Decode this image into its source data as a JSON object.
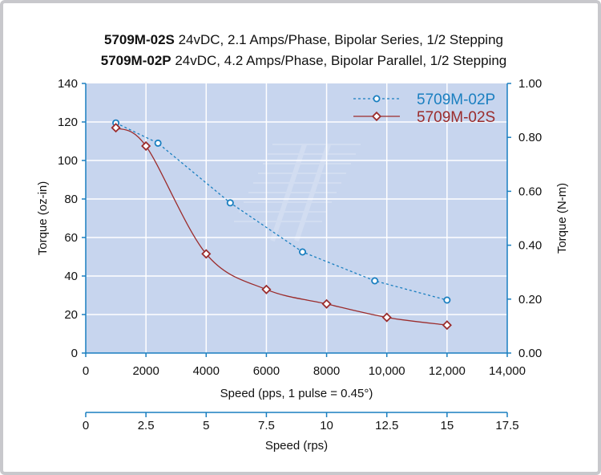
{
  "title": {
    "line1_model": "5709M-02S",
    "line1_desc": " 24vDC, 2.1 Amps/Phase, Bipolar Series, 1/2 Stepping",
    "line2_model": "5709M-02P",
    "line2_desc": " 24vDC, 4.2 Amps/Phase, Bipolar Parallel, 1/2 Stepping"
  },
  "chart_data": {
    "type": "line",
    "xlabel": "Speed (pps, 1 pulse = 0.45°)",
    "ylabel": "Torque (oz-in)",
    "y2label": "Torque (N-m)",
    "x2label": "Speed (rps)",
    "xlim": [
      0,
      14000
    ],
    "ylim": [
      0,
      140
    ],
    "y2lim": [
      0,
      1.0
    ],
    "x2lim": [
      0,
      17.5
    ],
    "x_ticks": [
      0,
      2000,
      4000,
      6000,
      8000,
      10000,
      12000,
      14000
    ],
    "x_tick_labels": [
      "0",
      "2000",
      "4000",
      "6000",
      "8000",
      "10,000",
      "12,000",
      "14,000"
    ],
    "y_ticks": [
      0,
      20,
      40,
      60,
      80,
      100,
      120,
      140
    ],
    "y_tick_labels": [
      "0",
      "20",
      "40",
      "60",
      "80",
      "100",
      "120",
      "140"
    ],
    "y2_ticks": [
      0,
      0.2,
      0.4,
      0.6,
      0.8,
      1.0
    ],
    "y2_tick_labels": [
      "0.00",
      "0.20",
      "0.40",
      "0.60",
      "0.80",
      "1.00"
    ],
    "x2_ticks": [
      0,
      2.5,
      5,
      7.5,
      10,
      12.5,
      15,
      17.5
    ],
    "x2_tick_labels": [
      "0",
      "2.5",
      "5",
      "7.5",
      "10",
      "12.5",
      "15",
      "17.5"
    ],
    "grid": true,
    "legend_position": "top-right",
    "series": [
      {
        "name": "5709M-02P",
        "color": "#1a7fc0",
        "style": "dashed",
        "marker": "circle",
        "x": [
          1000,
          2400,
          4800,
          7200,
          9600,
          12000
        ],
        "y": [
          119.5,
          109,
          78,
          52.5,
          37.5,
          27.5
        ]
      },
      {
        "name": "5709M-02S",
        "color": "#9b2c2c",
        "style": "solid",
        "marker": "diamond",
        "x": [
          1000,
          2000,
          4000,
          6000,
          8000,
          10000,
          12000
        ],
        "y": [
          117,
          107.5,
          51.5,
          33,
          25.5,
          18.5,
          14.5
        ]
      }
    ]
  }
}
